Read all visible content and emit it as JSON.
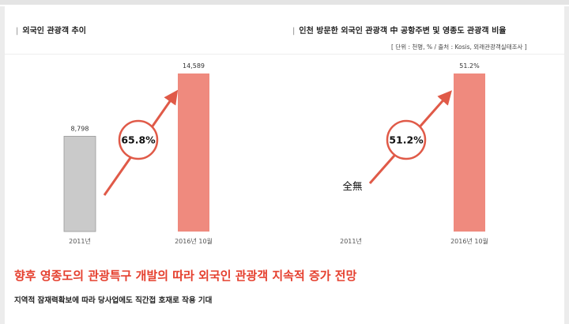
{
  "chart_data": [
    {
      "type": "bar",
      "title": "외국인 관광객 추이",
      "categories": [
        "2011년",
        "2016년 10월"
      ],
      "values": [
        8798,
        14589
      ],
      "data_labels": [
        "8,798",
        "14,589"
      ],
      "colors": [
        "#cacaca",
        "#ef8a7e"
      ],
      "growth_label": "65.8%"
    },
    {
      "type": "bar",
      "title": "인천 방문한 외국인 관광객 中 공항주변 및 영종도 관광객 비율",
      "subtitle": "[ 단위 : 천명, % / 출처 : Kosis, 외래관광객실태조사 ]",
      "categories": [
        "2011년",
        "2016년 10월"
      ],
      "values": [
        0,
        51.2
      ],
      "data_labels": [
        "",
        "51.2%"
      ],
      "colors": [
        "#cacaca",
        "#ef8a7e"
      ],
      "growth_label": "51.2%",
      "annotation": "全無"
    }
  ],
  "colors": {
    "accent": "#e5402f",
    "arrow": "#e05a48",
    "bar_old": "#cacaca",
    "bar_new": "#ef8a7e"
  },
  "footer": {
    "headline": "향후 영종도의 관광특구 개발의 따라 외국인 관광객 지속적 증가 전망",
    "subline": "지역적 잠재력확보에 따라 당사업에도 직간접 호재로 작용 기대"
  }
}
